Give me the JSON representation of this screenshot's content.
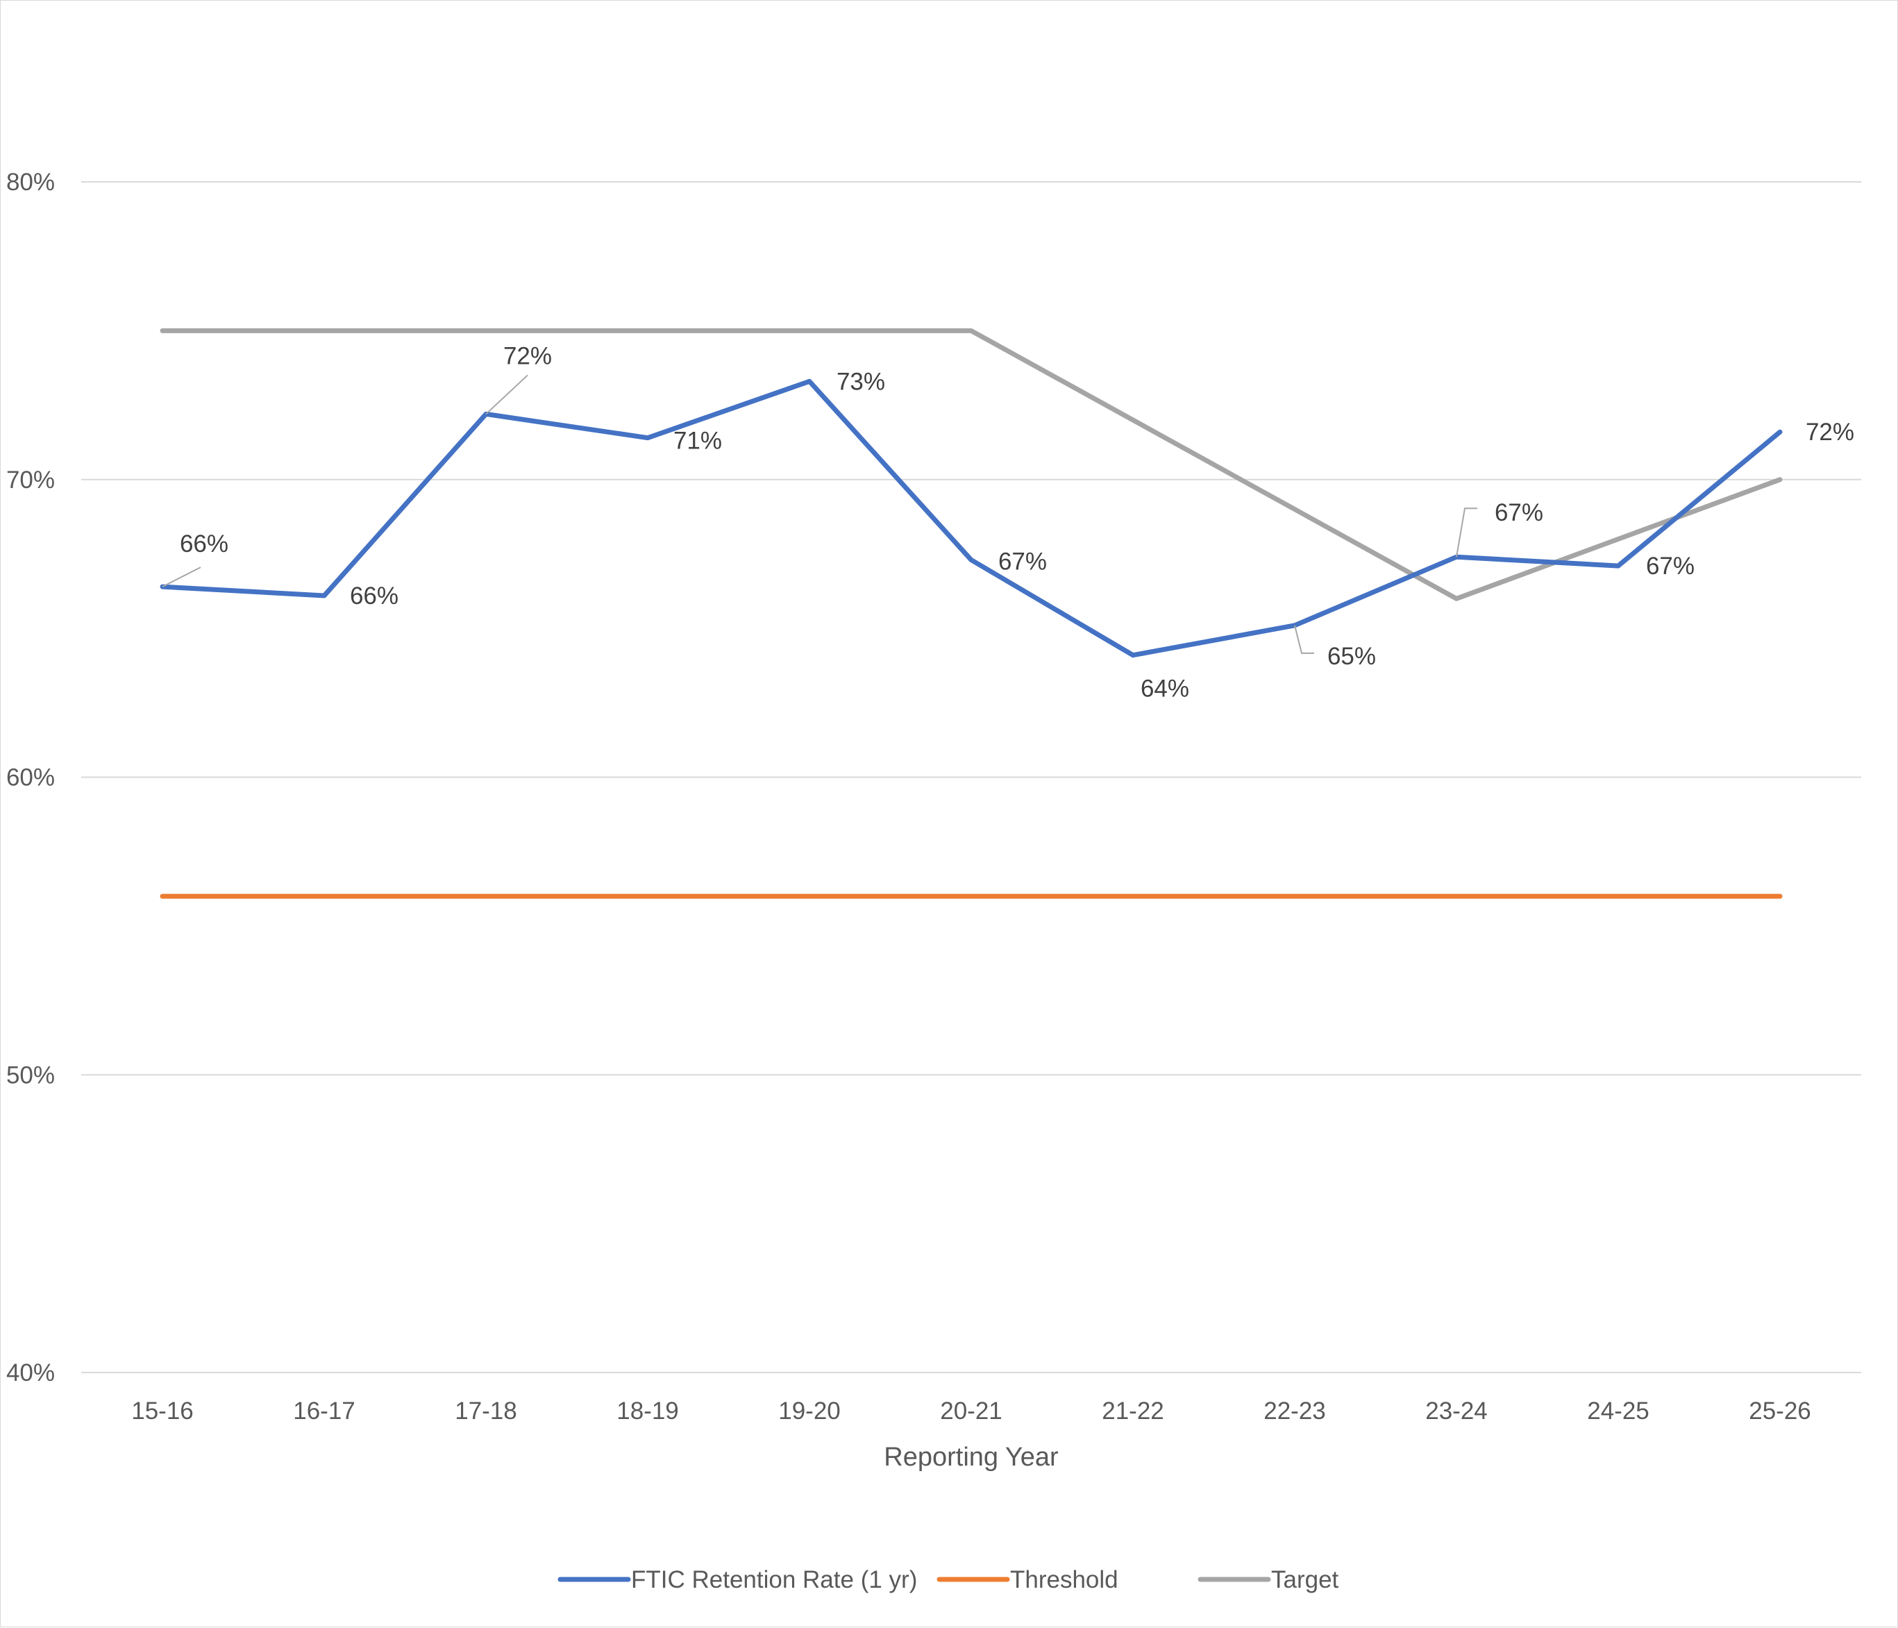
{
  "chart_data": {
    "type": "line",
    "categories": [
      "15-16",
      "16-17",
      "17-18",
      "18-19",
      "19-20",
      "20-21",
      "21-22",
      "22-23",
      "23-24",
      "24-25",
      "25-26"
    ],
    "xlabel": "Reporting Year",
    "ylim": [
      40,
      80
    ],
    "ytick_values": [
      40,
      50,
      60,
      70,
      80
    ],
    "ytick_labels": [
      "40%",
      "50%",
      "60%",
      "70%",
      "80%"
    ],
    "grid": true,
    "legend_position": "bottom",
    "series": [
      {
        "name": "FTIC Retention Rate (1 yr)",
        "color": "#4472c4",
        "values": [
          66.4,
          66.1,
          72.2,
          71.4,
          73.3,
          67.3,
          64.1,
          65.1,
          67.4,
          67.1,
          71.6
        ],
        "data_labels": [
          "66%",
          "66%",
          "72%",
          "71%",
          "73%",
          "67%",
          "64%",
          "65%",
          "67%",
          "67%",
          "72%"
        ]
      },
      {
        "name": "Threshold",
        "color": "#ed7d31",
        "values": [
          56,
          56,
          56,
          56,
          56,
          56,
          56,
          56,
          56,
          56,
          56
        ]
      },
      {
        "name": "Target",
        "color": "#a5a5a5",
        "values": [
          75,
          75,
          75,
          75,
          75,
          75,
          72,
          69,
          66,
          68,
          70
        ]
      }
    ]
  }
}
